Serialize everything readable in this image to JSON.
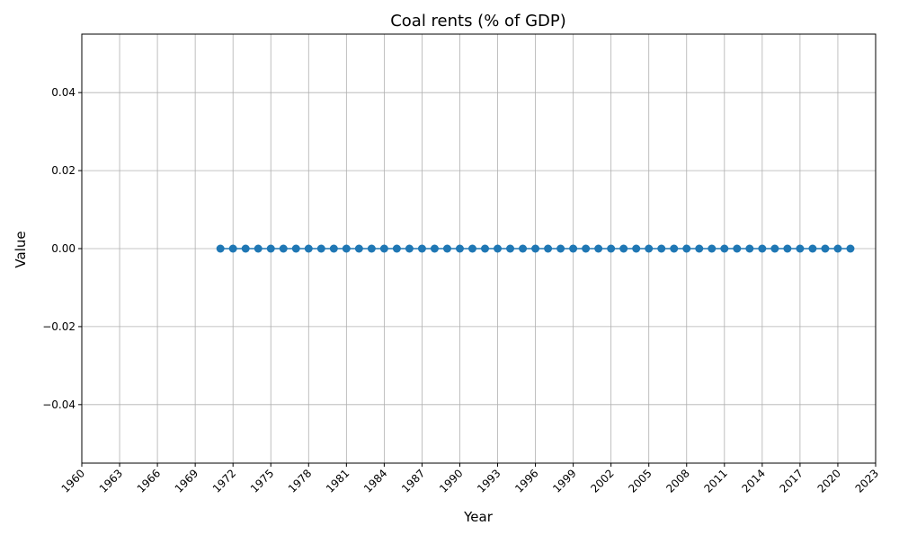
{
  "chart_data": {
    "type": "line",
    "title": "Coal rents (% of GDP)",
    "xlabel": "Year",
    "ylabel": "Value",
    "xlim": [
      1960,
      2023
    ],
    "ylim": [
      -0.055,
      0.055
    ],
    "x_ticks": [
      1960,
      1963,
      1966,
      1969,
      1972,
      1975,
      1978,
      1981,
      1984,
      1987,
      1990,
      1993,
      1996,
      1999,
      2002,
      2005,
      2008,
      2011,
      2014,
      2017,
      2020,
      2023
    ],
    "y_ticks": [
      -0.04,
      -0.02,
      0.0,
      0.02,
      0.04
    ],
    "y_tick_labels": [
      "−0.04",
      "−0.02",
      "0.00",
      "0.02",
      "0.04"
    ],
    "x_tick_rotation": 45,
    "grid": true,
    "marker": "circle",
    "line_color": "#1f77b4",
    "series": [
      {
        "x": [
          1971,
          1972,
          1973,
          1974,
          1975,
          1976,
          1977,
          1978,
          1979,
          1980,
          1981,
          1982,
          1983,
          1984,
          1985,
          1986,
          1987,
          1988,
          1989,
          1990,
          1991,
          1992,
          1993,
          1994,
          1995,
          1996,
          1997,
          1998,
          1999,
          2000,
          2001,
          2002,
          2003,
          2004,
          2005,
          2006,
          2007,
          2008,
          2009,
          2010,
          2011,
          2012,
          2013,
          2014,
          2015,
          2016,
          2017,
          2018,
          2019,
          2020,
          2021
        ],
        "values": [
          0,
          0,
          0,
          0,
          0,
          0,
          0,
          0,
          0,
          0,
          0,
          0,
          0,
          0,
          0,
          0,
          0,
          0,
          0,
          0,
          0,
          0,
          0,
          0,
          0,
          0,
          0,
          0,
          0,
          0,
          0,
          0,
          0,
          0,
          0,
          0,
          0,
          0,
          0,
          0,
          0,
          0,
          0,
          0,
          0,
          0,
          0,
          0,
          0,
          0,
          0
        ]
      }
    ]
  }
}
